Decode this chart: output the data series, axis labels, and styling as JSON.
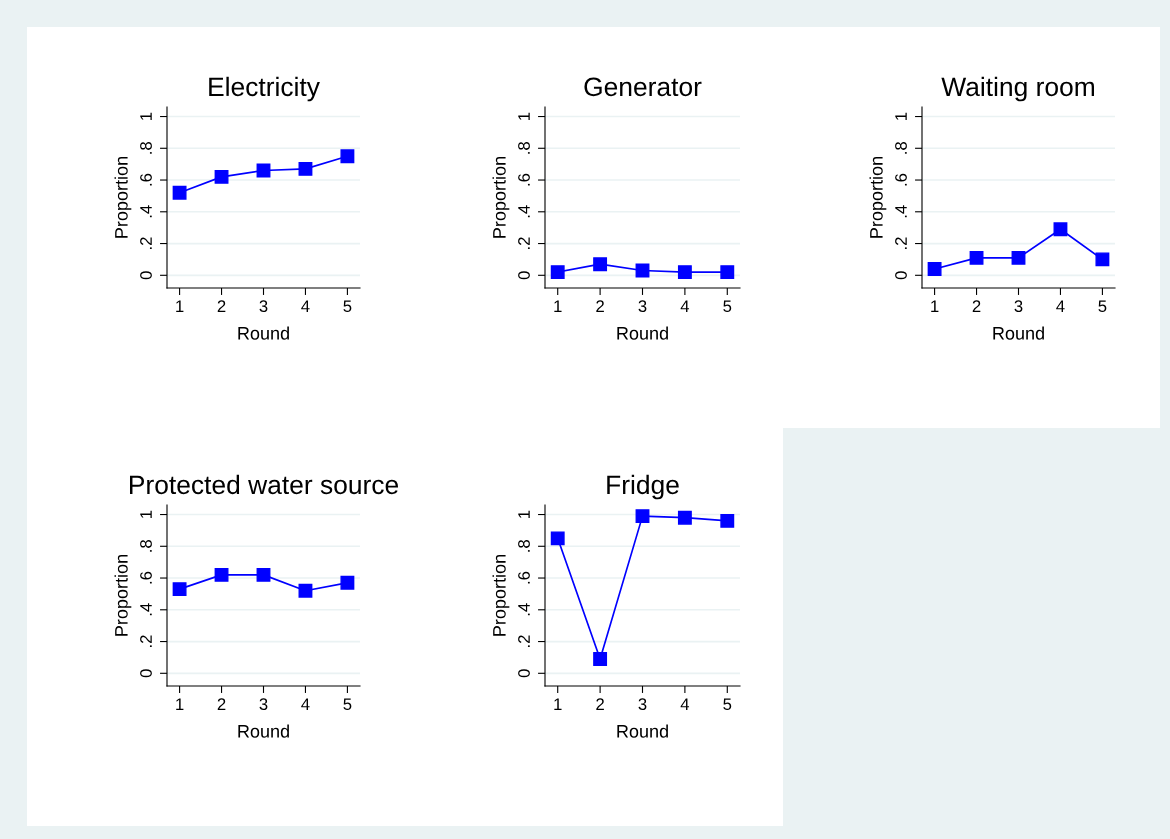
{
  "chart_data": [
    {
      "type": "line",
      "title": "Electricity",
      "xlabel": "Round",
      "ylabel": "Proportion",
      "x": [
        1,
        2,
        3,
        4,
        5
      ],
      "values": [
        0.52,
        0.62,
        0.66,
        0.67,
        0.75
      ],
      "color": "#0000ff",
      "marker": "square",
      "grid": "y",
      "xlim": [
        0.7,
        5.3
      ],
      "ylim": [
        -0.08,
        1.06
      ],
      "xticks": [
        1,
        2,
        3,
        4,
        5
      ],
      "yticks": [
        {
          "value": 0,
          "label": "0"
        },
        {
          "value": 0.2,
          "label": ".2"
        },
        {
          "value": 0.4,
          "label": ".4"
        },
        {
          "value": 0.6,
          "label": ".6"
        },
        {
          "value": 0.8,
          "label": ".8"
        },
        {
          "value": 1,
          "label": "1"
        }
      ]
    },
    {
      "type": "line",
      "title": "Generator",
      "xlabel": "Round",
      "ylabel": "Proportion",
      "x": [
        1,
        2,
        3,
        4,
        5
      ],
      "values": [
        0.02,
        0.07,
        0.03,
        0.02,
        0.02
      ],
      "color": "#0000ff",
      "marker": "square",
      "grid": "y",
      "xlim": [
        0.7,
        5.3
      ],
      "ylim": [
        -0.08,
        1.06
      ],
      "xticks": [
        1,
        2,
        3,
        4,
        5
      ],
      "yticks": [
        {
          "value": 0,
          "label": "0"
        },
        {
          "value": 0.2,
          "label": ".2"
        },
        {
          "value": 0.4,
          "label": ".4"
        },
        {
          "value": 0.6,
          "label": ".6"
        },
        {
          "value": 0.8,
          "label": ".8"
        },
        {
          "value": 1,
          "label": "1"
        }
      ]
    },
    {
      "type": "line",
      "title": "Waiting room",
      "xlabel": "Round",
      "ylabel": "Proportion",
      "x": [
        1,
        2,
        3,
        4,
        5
      ],
      "values": [
        0.04,
        0.11,
        0.11,
        0.29,
        0.1
      ],
      "color": "#0000ff",
      "marker": "square",
      "grid": "y",
      "xlim": [
        0.7,
        5.3
      ],
      "ylim": [
        -0.08,
        1.06
      ],
      "xticks": [
        1,
        2,
        3,
        4,
        5
      ],
      "yticks": [
        {
          "value": 0,
          "label": "0"
        },
        {
          "value": 0.2,
          "label": ".2"
        },
        {
          "value": 0.4,
          "label": ".4"
        },
        {
          "value": 0.6,
          "label": ".6"
        },
        {
          "value": 0.8,
          "label": ".8"
        },
        {
          "value": 1,
          "label": "1"
        }
      ]
    },
    {
      "type": "line",
      "title": "Protected water source",
      "xlabel": "Round",
      "ylabel": "Proportion",
      "x": [
        1,
        2,
        3,
        4,
        5
      ],
      "values": [
        0.53,
        0.62,
        0.62,
        0.52,
        0.57
      ],
      "color": "#0000ff",
      "marker": "square",
      "grid": "y",
      "xlim": [
        0.7,
        5.3
      ],
      "ylim": [
        -0.08,
        1.06
      ],
      "xticks": [
        1,
        2,
        3,
        4,
        5
      ],
      "yticks": [
        {
          "value": 0,
          "label": "0"
        },
        {
          "value": 0.2,
          "label": ".2"
        },
        {
          "value": 0.4,
          "label": ".4"
        },
        {
          "value": 0.6,
          "label": ".6"
        },
        {
          "value": 0.8,
          "label": ".8"
        },
        {
          "value": 1,
          "label": "1"
        }
      ]
    },
    {
      "type": "line",
      "title": "Fridge",
      "xlabel": "Round",
      "ylabel": "Proportion",
      "x": [
        1,
        2,
        3,
        4,
        5
      ],
      "values": [
        0.85,
        0.09,
        0.99,
        0.98,
        0.96
      ],
      "color": "#0000ff",
      "marker": "square",
      "grid": "y",
      "xlim": [
        0.7,
        5.3
      ],
      "ylim": [
        -0.08,
        1.06
      ],
      "xticks": [
        1,
        2,
        3,
        4,
        5
      ],
      "yticks": [
        {
          "value": 0,
          "label": "0"
        },
        {
          "value": 0.2,
          "label": ".2"
        },
        {
          "value": 0.4,
          "label": ".4"
        },
        {
          "value": 0.6,
          "label": ".6"
        },
        {
          "value": 0.8,
          "label": ".8"
        },
        {
          "value": 1,
          "label": "1"
        }
      ]
    }
  ]
}
